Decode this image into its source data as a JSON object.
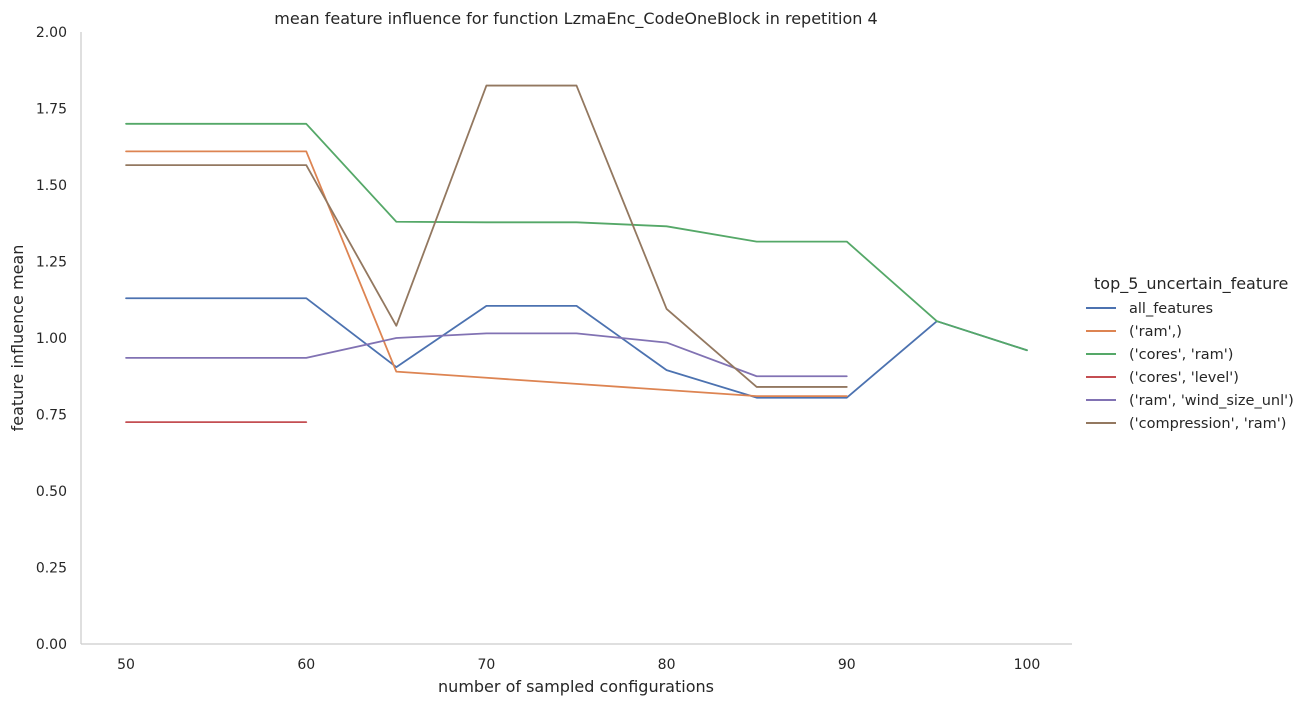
{
  "chart_data": {
    "type": "line",
    "title": "mean feature influence for function LzmaEnc_CodeOneBlock in repetition 4",
    "xlabel": "number of sampled configurations",
    "ylabel": "feature influence mean",
    "xlim": [
      47.5,
      102.5
    ],
    "ylim": [
      0,
      2.0
    ],
    "xticks": [
      50,
      60,
      70,
      80,
      90,
      100
    ],
    "xtick_labels": [
      "50",
      "60",
      "70",
      "80",
      "90",
      "100"
    ],
    "yticks": [
      0,
      0.25,
      0.5,
      0.75,
      1.0,
      1.25,
      1.5,
      1.75,
      2.0
    ],
    "ytick_labels": [
      "0.00",
      "0.25",
      "0.50",
      "0.75",
      "1.00",
      "1.25",
      "1.50",
      "1.75",
      "2.00"
    ],
    "grid": false,
    "legend": {
      "title": "top_5_uncertain_feature",
      "placement": "right-outside"
    },
    "series": [
      {
        "name": "all_features",
        "color": "#4c72b0",
        "x": [
          50,
          55,
          60,
          65,
          70,
          75,
          80,
          85,
          90,
          95,
          100
        ],
        "y": [
          1.13,
          1.13,
          1.13,
          0.905,
          1.105,
          1.105,
          0.895,
          0.805,
          0.805,
          1.055,
          0.96
        ]
      },
      {
        "name": "('ram',)",
        "color": "#dd8452",
        "x": [
          50,
          55,
          60,
          65,
          70,
          75,
          80,
          85,
          90
        ],
        "y": [
          1.61,
          1.61,
          1.61,
          0.89,
          0.87,
          0.85,
          0.83,
          0.81,
          0.81
        ]
      },
      {
        "name": "('cores', 'ram')",
        "color": "#55a868",
        "x": [
          50,
          55,
          60,
          65,
          70,
          75,
          80,
          85,
          90,
          95,
          100
        ],
        "y": [
          1.7,
          1.7,
          1.7,
          1.38,
          1.378,
          1.378,
          1.365,
          1.315,
          1.315,
          1.055,
          0.96
        ]
      },
      {
        "name": "('cores', 'level')",
        "color": "#c44e52",
        "x": [
          50,
          55,
          60
        ],
        "y": [
          0.725,
          0.725,
          0.725
        ]
      },
      {
        "name": "('ram', 'wind_size_unl')",
        "color": "#8172b3",
        "x": [
          50,
          55,
          60,
          65,
          70,
          75,
          80,
          85,
          90
        ],
        "y": [
          0.935,
          0.935,
          0.935,
          1.0,
          1.015,
          1.015,
          0.985,
          0.875,
          0.875
        ]
      },
      {
        "name": "('compression', 'ram')",
        "color": "#937860",
        "x": [
          50,
          55,
          60,
          65,
          70,
          75,
          80,
          85,
          90
        ],
        "y": [
          1.565,
          1.565,
          1.565,
          1.04,
          1.825,
          1.825,
          1.095,
          0.84,
          0.84
        ]
      }
    ]
  }
}
